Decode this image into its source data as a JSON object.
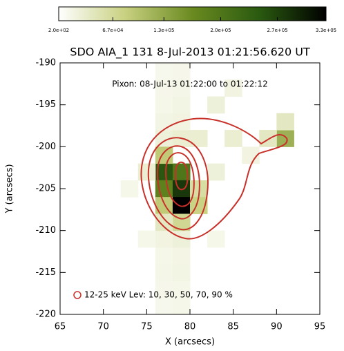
{
  "chart_data": {
    "type": "image",
    "title": "SDO AIA_1 131   8-Jul-2013 01:21:56.620 UT",
    "annotation": "Pixon: 08-Jul-13 01:22:00 to 01:22:12",
    "legend_label": "12-25 keV Lev: 10, 30, 50, 70, 90 %",
    "xlabel": "X (arcsecs)",
    "ylabel": "Y (arcsecs)",
    "xlim": [
      65,
      95
    ],
    "ylim": [
      -220,
      -190
    ],
    "xticks": [
      65,
      70,
      75,
      80,
      85,
      90,
      95
    ],
    "yticks": [
      -220,
      -215,
      -210,
      -205,
      -200,
      -195,
      -190
    ],
    "clim": [
      200,
      330000
    ],
    "cticks": [
      {
        "value": 200,
        "label": "2.0e+02"
      },
      {
        "value": 67000,
        "label": "6.7e+04"
      },
      {
        "value": 130000,
        "label": "1.3e+05"
      },
      {
        "value": 200000,
        "label": "2.0e+05"
      },
      {
        "value": 270000,
        "label": "2.7e+05"
      },
      {
        "value": 330000,
        "label": "3.3e+05"
      }
    ],
    "x": [
      77,
      79,
      77,
      79,
      77,
      79,
      77,
      79,
      77,
      79,
      77,
      79,
      77,
      79,
      77,
      79,
      77,
      79,
      77,
      79,
      77,
      79,
      77,
      79,
      77,
      79,
      81,
      81,
      79,
      77,
      77,
      91,
      89,
      91,
      85,
      87,
      83,
      85,
      73,
      75,
      83,
      81,
      83,
      75
    ],
    "y": [
      -219,
      -219,
      -217,
      -217,
      -215,
      -215,
      -213,
      -213,
      -211,
      -211,
      -199,
      -199,
      -197,
      -197,
      -195,
      -195,
      -193,
      -193,
      -191,
      -191,
      -203,
      -203,
      -205,
      -205,
      -207,
      -207,
      -205,
      -207,
      -209,
      -201,
      -209,
      -199,
      -199,
      -197,
      -199,
      -201,
      -195,
      -193,
      -205,
      -203,
      -203,
      -199,
      -211,
      -211
    ],
    "values": [
      12000,
      15000,
      14000,
      15000,
      16000,
      18000,
      15000,
      17000,
      20000,
      25000,
      25000,
      30000,
      18000,
      20000,
      15000,
      18000,
      14000,
      16000,
      12000,
      14000,
      250000,
      200000,
      180000,
      280000,
      90000,
      330000,
      60000,
      80000,
      70000,
      90000,
      40000,
      120000,
      40000,
      40000,
      30000,
      20000,
      25000,
      20000,
      15000,
      30000,
      25000,
      30000,
      15000,
      15000
    ]
  }
}
